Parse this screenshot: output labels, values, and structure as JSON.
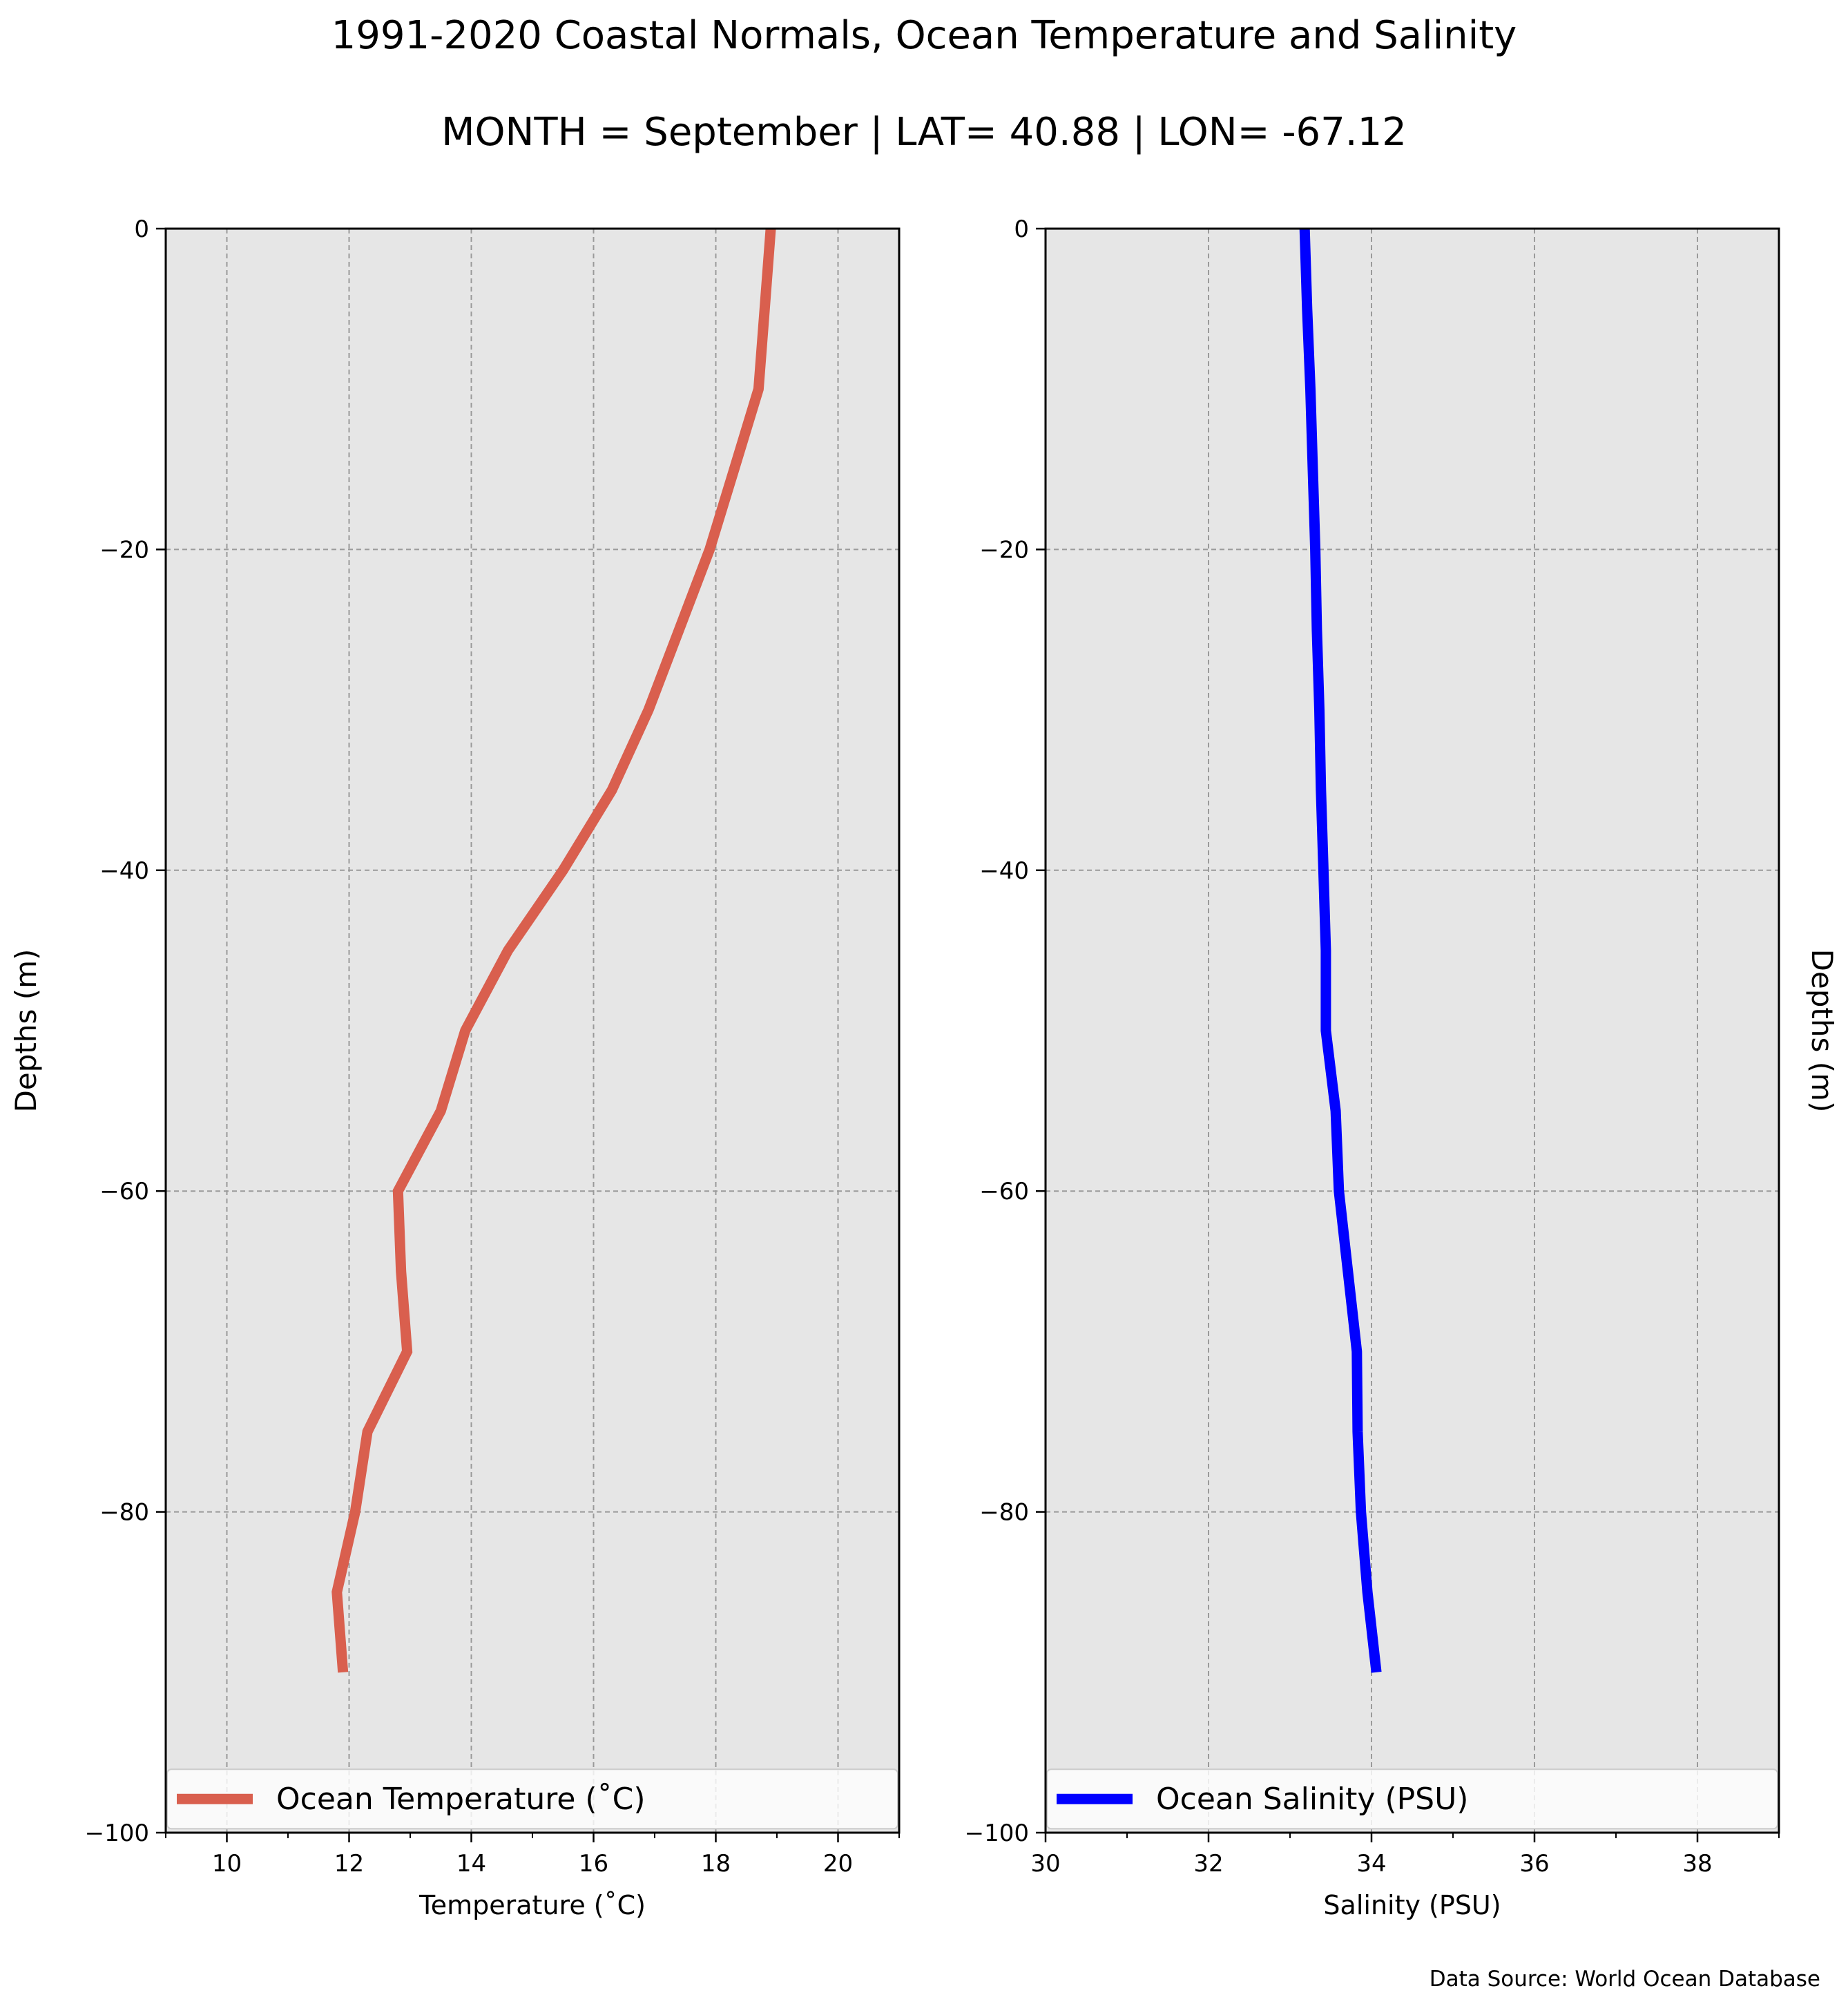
{
  "figure": {
    "title_line1": "1991-2020 Coastal Normals, Ocean Temperature and Salinity",
    "title_line2": "MONTH = September | LAT= 40.88 | LON= -67.12",
    "source_note": "Data Source: World Ocean Database"
  },
  "chart_data": [
    {
      "type": "line",
      "title": "",
      "xlabel": "Temperature ($^\\circ$C)",
      "xlabel_display": "Temperature (˚C)",
      "ylabel": "Depths (m)",
      "xlim": [
        9,
        21
      ],
      "ylim": [
        -100,
        0
      ],
      "xticks": [
        10,
        12,
        14,
        16,
        18,
        20
      ],
      "yticks": [
        0,
        -20,
        -40,
        -60,
        -80,
        -100
      ],
      "grid": true,
      "background": "#e6e6e6",
      "legend": {
        "position": "bottom",
        "label": "Ocean Temperature (˚C)"
      },
      "series": [
        {
          "name": "Ocean Temperature (˚C)",
          "color": "#d95f4e",
          "x": [
            18.9,
            18.8,
            18.7,
            18.3,
            17.9,
            17.4,
            16.9,
            16.3,
            15.5,
            14.6,
            13.9,
            13.5,
            12.8,
            12.85,
            12.95,
            12.3,
            12.1,
            11.8,
            11.9
          ],
          "y": [
            0,
            -5,
            -10,
            -15,
            -20,
            -25,
            -30,
            -35,
            -40,
            -45,
            -50,
            -55,
            -60,
            -65,
            -70,
            -75,
            -80,
            -85,
            -90
          ]
        }
      ]
    },
    {
      "type": "line",
      "title": "",
      "xlabel": "Salinity (PSU)",
      "ylabel": "Depths (m)",
      "xlim": [
        30,
        39
      ],
      "ylim": [
        -100,
        0
      ],
      "xticks": [
        30,
        32,
        34,
        36,
        38
      ],
      "yticks": [
        0,
        -20,
        -40,
        -60,
        -80,
        -100
      ],
      "grid": true,
      "background": "#e6e6e6",
      "legend": {
        "position": "bottom",
        "label": "Ocean Salinity (PSU)"
      },
      "series": [
        {
          "name": "Ocean Salinity (PSU)",
          "color": "#0000ff",
          "x": [
            33.18,
            33.21,
            33.25,
            33.28,
            33.31,
            33.33,
            33.36,
            33.38,
            33.41,
            33.44,
            33.44,
            33.56,
            33.6,
            33.71,
            33.82,
            33.83,
            33.87,
            33.95,
            34.06
          ],
          "y": [
            0,
            -5,
            -10,
            -15,
            -20,
            -25,
            -30,
            -35,
            -40,
            -45,
            -50,
            -55,
            -60,
            -65,
            -70,
            -75,
            -80,
            -85,
            -90
          ]
        }
      ]
    }
  ]
}
